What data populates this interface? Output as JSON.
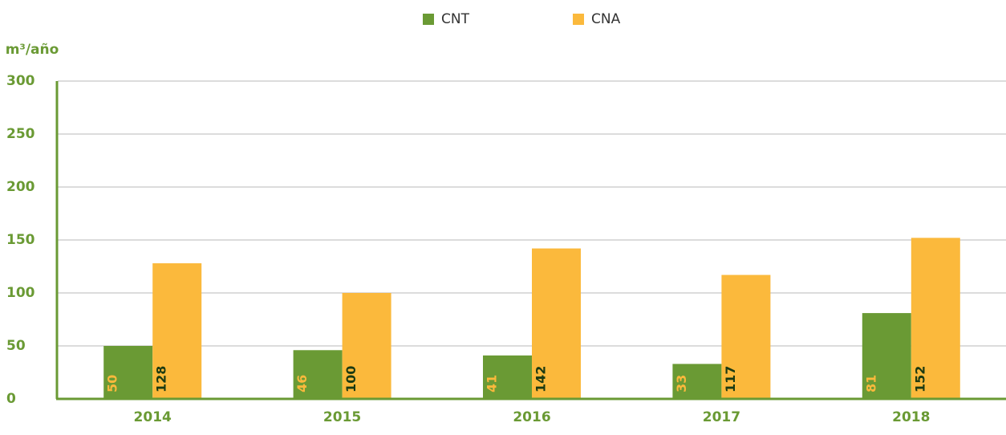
{
  "chart_data": {
    "type": "bar",
    "y_label": "m³/año",
    "categories": [
      "2014",
      "2015",
      "2016",
      "2017",
      "2018"
    ],
    "series": [
      {
        "name": "CNT",
        "color": "#6a9a34",
        "label_color": "#fbb93c",
        "values": [
          50,
          46,
          41,
          33,
          81
        ]
      },
      {
        "name": "CNA",
        "color": "#fbb93c",
        "label_color": "#1b3a12",
        "values": [
          128,
          100,
          142,
          117,
          152
        ]
      }
    ],
    "ylim": [
      0,
      300
    ],
    "yticks": [
      0,
      50,
      100,
      150,
      200,
      250,
      300
    ],
    "grid": true,
    "legend": "top"
  }
}
